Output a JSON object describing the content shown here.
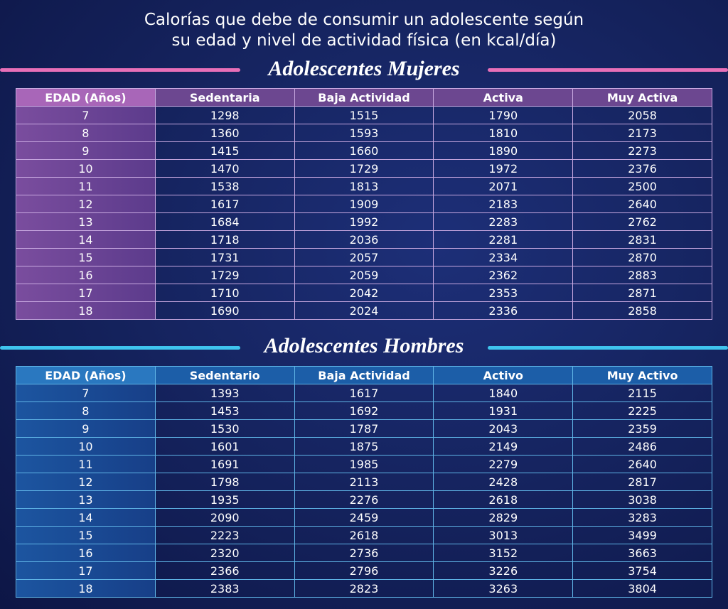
{
  "header": {
    "title_lines": [
      "Calorías que debe de consumir un adolescente según",
      "su edad y nivel de actividad física (en kcal/día)"
    ]
  },
  "tables": [
    {
      "title": "Adolescentes Mujeres",
      "columns": [
        "EDAD (Años)",
        "Sedentaria",
        "Baja Actividad",
        "Activa",
        "Muy Activa"
      ],
      "rows": [
        [
          "7",
          "1298",
          "1515",
          "1790",
          "2058"
        ],
        [
          "8",
          "1360",
          "1593",
          "1810",
          "2173"
        ],
        [
          "9",
          "1415",
          "1660",
          "1890",
          "2273"
        ],
        [
          "10",
          "1470",
          "1729",
          "1972",
          "2376"
        ],
        [
          "11",
          "1538",
          "1813",
          "2071",
          "2500"
        ],
        [
          "12",
          "1617",
          "1909",
          "2183",
          "2640"
        ],
        [
          "13",
          "1684",
          "1992",
          "2283",
          "2762"
        ],
        [
          "14",
          "1718",
          "2036",
          "2281",
          "2831"
        ],
        [
          "15",
          "1731",
          "2057",
          "2334",
          "2870"
        ],
        [
          "16",
          "1729",
          "2059",
          "2362",
          "2883"
        ],
        [
          "17",
          "1710",
          "2042",
          "2353",
          "2871"
        ],
        [
          "18",
          "1690",
          "2024",
          "2336",
          "2858"
        ]
      ]
    },
    {
      "title": "Adolescentes Hombres",
      "columns": [
        "EDAD (Años)",
        "Sedentario",
        "Baja Actividad",
        "Activo",
        "Muy Activo"
      ],
      "rows": [
        [
          "7",
          "1393",
          "1617",
          "1840",
          "2115"
        ],
        [
          "8",
          "1453",
          "1692",
          "1931",
          "2225"
        ],
        [
          "9",
          "1530",
          "1787",
          "2043",
          "2359"
        ],
        [
          "10",
          "1601",
          "1875",
          "2149",
          "2486"
        ],
        [
          "11",
          "1691",
          "1985",
          "2279",
          "2640"
        ],
        [
          "12",
          "1798",
          "2113",
          "2428",
          "2817"
        ],
        [
          "13",
          "1935",
          "2276",
          "2618",
          "3038"
        ],
        [
          "14",
          "2090",
          "2459",
          "2829",
          "3283"
        ],
        [
          "15",
          "2223",
          "2618",
          "3013",
          "3499"
        ],
        [
          "16",
          "2320",
          "2736",
          "3152",
          "3663"
        ],
        [
          "17",
          "2366",
          "2796",
          "3226",
          "3754"
        ],
        [
          "18",
          "2383",
          "2823",
          "3263",
          "3804"
        ]
      ]
    }
  ]
}
